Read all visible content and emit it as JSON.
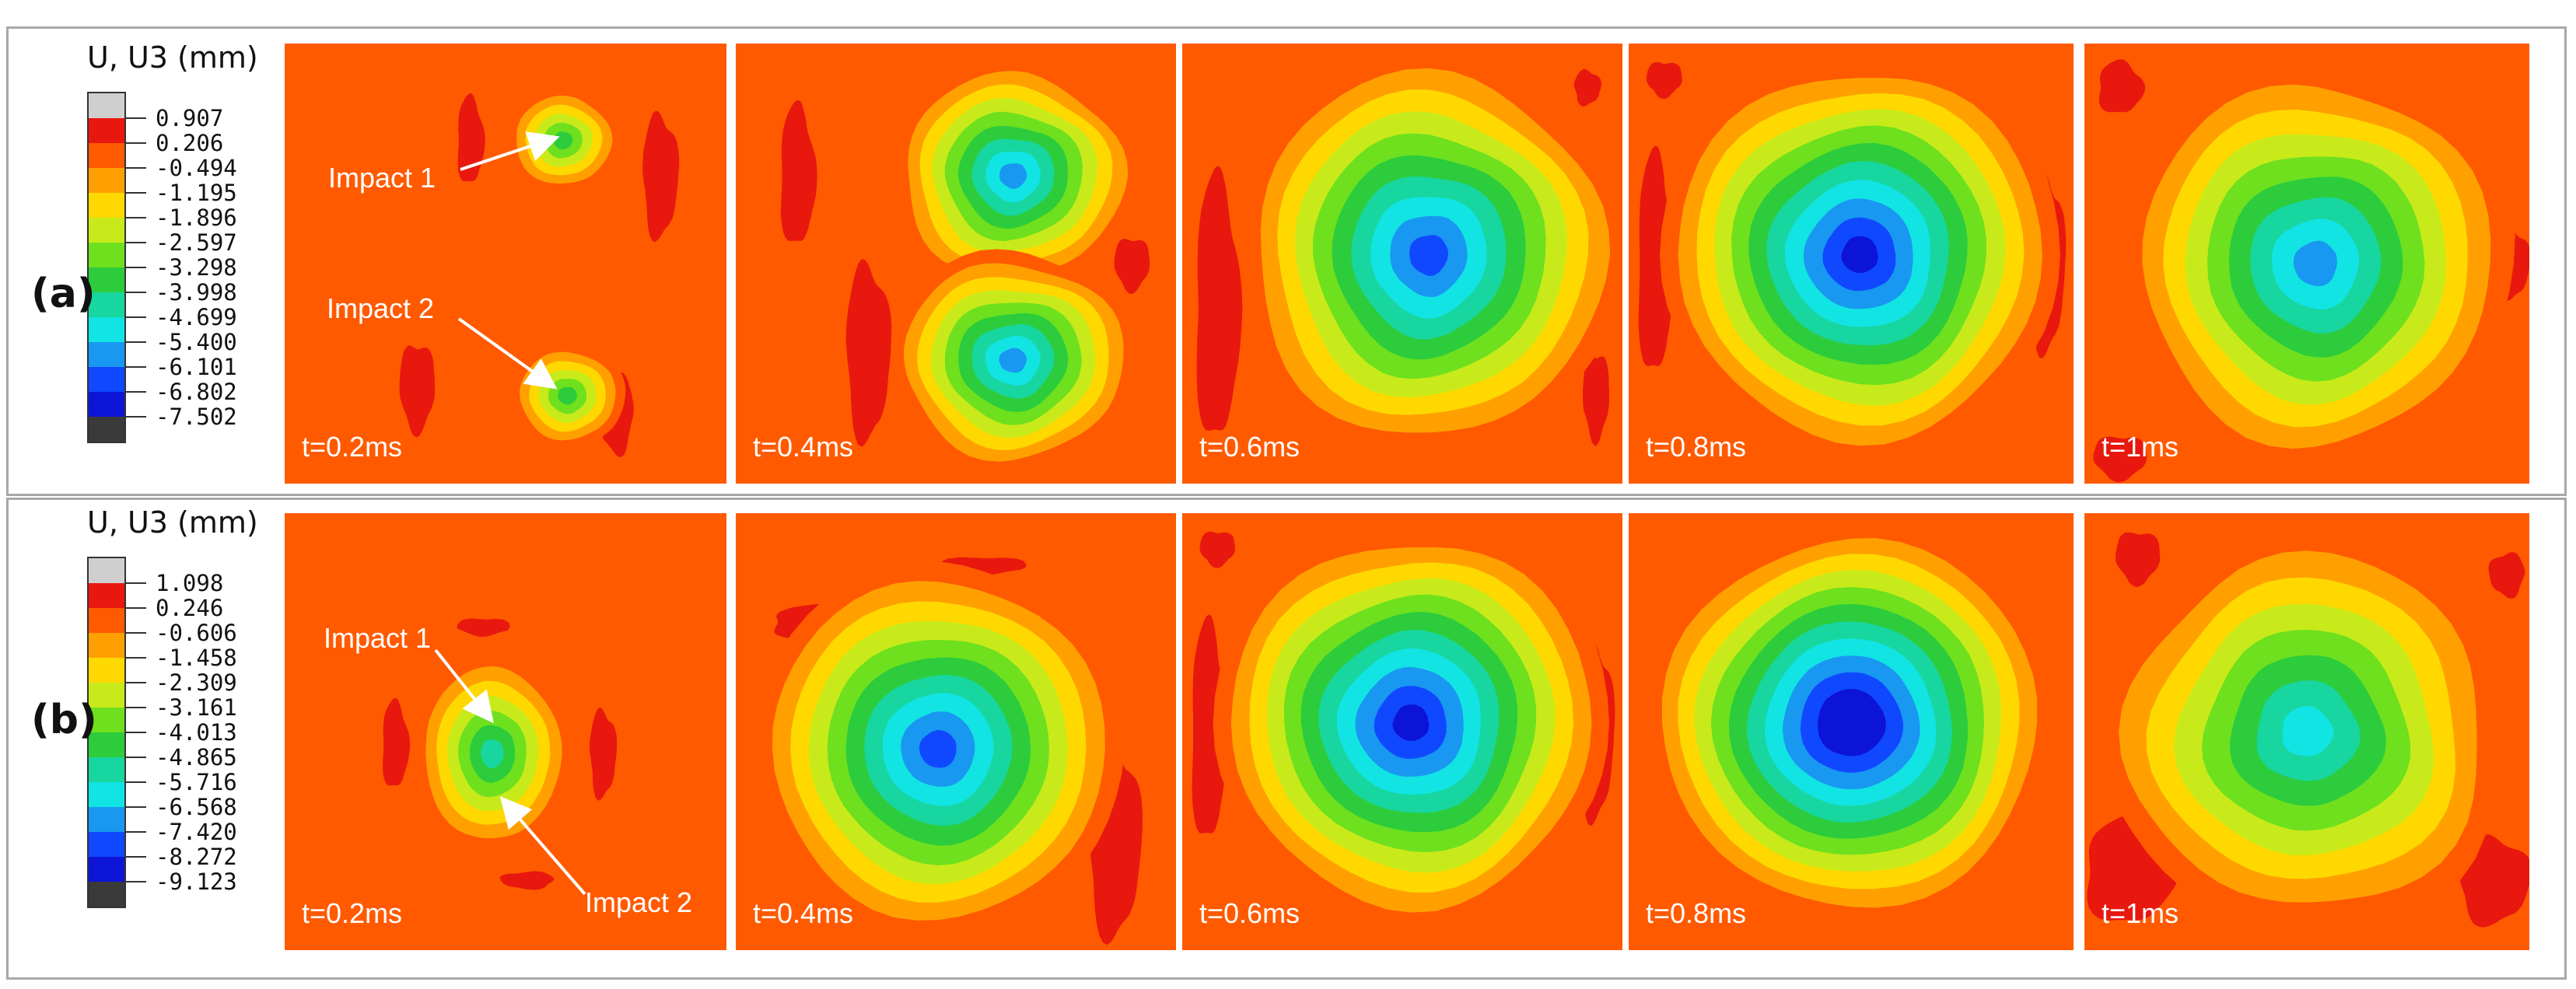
{
  "rows": [
    {
      "id": "a",
      "label": "(a)",
      "legend_title": "U, U3 (mm)",
      "legend_values": [
        "0.907",
        "0.206",
        "-0.494",
        "-1.195",
        "-1.896",
        "-2.597",
        "-3.298",
        "-3.998",
        "-4.699",
        "-5.400",
        "-6.101",
        "-6.802",
        "-7.502"
      ],
      "panels": [
        {
          "time": "t=0.2ms",
          "pattern": "two-impacts-early"
        },
        {
          "time": "t=0.4ms",
          "pattern": "hourglass"
        },
        {
          "time": "t=0.6ms",
          "pattern": "vertical-ellipse"
        },
        {
          "time": "t=0.8ms",
          "pattern": "square-central"
        },
        {
          "time": "t=1ms",
          "pattern": "vertical-ellipse-late"
        }
      ],
      "annotations": [
        "Impact 1",
        "Impact 2"
      ]
    },
    {
      "id": "b",
      "label": "(b)",
      "legend_title": "U, U3 (mm)",
      "legend_values": [
        "1.098",
        "0.246",
        "-0.606",
        "-1.458",
        "-2.309",
        "-3.161",
        "-4.013",
        "-4.865",
        "-5.716",
        "-6.568",
        "-7.420",
        "-8.272",
        "-9.123"
      ],
      "panels": [
        {
          "time": "t=0.2ms",
          "pattern": "single-ellipse-early"
        },
        {
          "time": "t=0.4ms",
          "pattern": "circular"
        },
        {
          "time": "t=0.6ms",
          "pattern": "square-central"
        },
        {
          "time": "t=0.8ms",
          "pattern": "square-central-deep"
        },
        {
          "time": "t=1ms",
          "pattern": "triangle-late"
        }
      ],
      "annotations": [
        "Impact 1",
        "Impact 2"
      ]
    }
  ],
  "colormap": [
    "#cfcfcf",
    "#e8180e",
    "#ff5a00",
    "#ffa000",
    "#ffd800",
    "#c8ea1a",
    "#6ee01e",
    "#2ccc3c",
    "#18d6a0",
    "#12e4e4",
    "#1898f0",
    "#1048ff",
    "#0c14d8",
    "#3a3a3a"
  ]
}
